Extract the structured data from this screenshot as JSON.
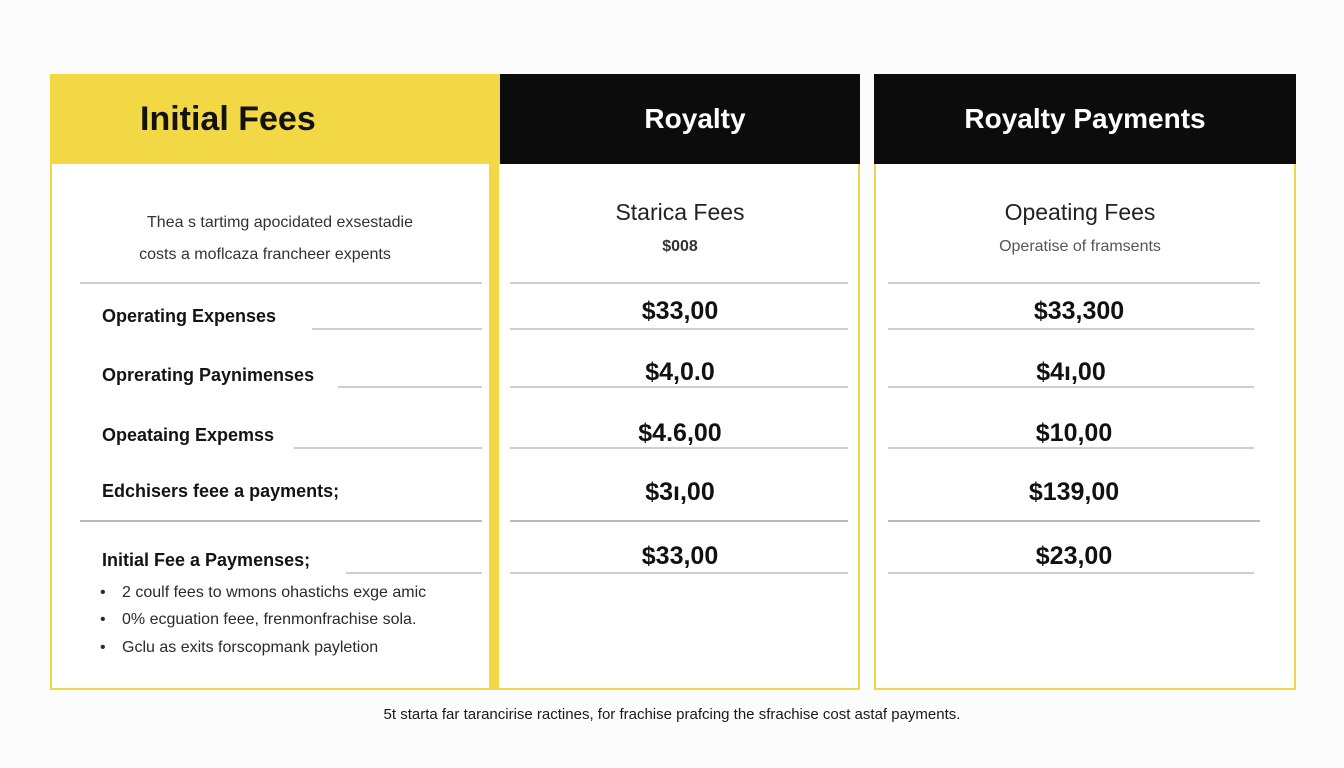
{
  "col1": {
    "header": "Initial Fees",
    "intro_line1": "Thea s tartimg apocidated exsestadie",
    "intro_line2": "costs a moflcaza francheer expents",
    "rows": [
      "Operating Expenses",
      "Oprerating Paynimenses",
      "Opeataing Expemss",
      "Edchisers feee a payments;",
      "Initial Fee a Paymenses;"
    ],
    "bullets": [
      "2 coulf fees to wmons ohastichs exge amic",
      "0% ecguation feee, frenmonfrachise sola.",
      "Gclu as exits forscopmank payletion"
    ]
  },
  "col2": {
    "header": "Royalty",
    "subhead": "Starica Fees",
    "subnote": "$008",
    "values": [
      "$33,00",
      "$4,0.0",
      "$4.6,00",
      "$3ı,00",
      "$33,00"
    ]
  },
  "col3": {
    "header": "Royalty Payments",
    "subhead": "Opeating Fees",
    "subnote": "Operatise of framsents",
    "values": [
      "$33,300",
      "$4ı,00",
      "$10,00",
      "$139,00",
      "$23,00"
    ]
  },
  "footer": "5t starta far tarancirise ractines, for frachise prafcing the sfrachise cost astaf payments.",
  "colors": {
    "accent_yellow": "#f3d845",
    "header_black": "#0c0c0c"
  }
}
